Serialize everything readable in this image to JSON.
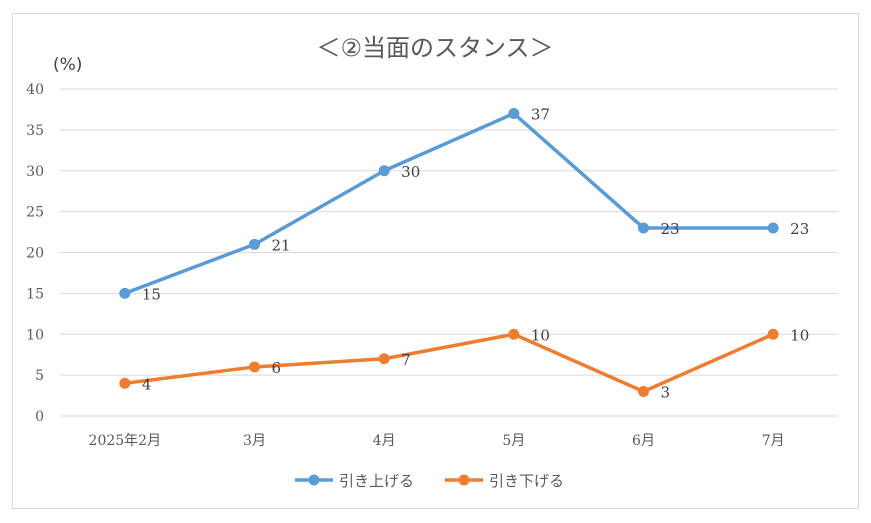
{
  "chart_data": {
    "type": "line",
    "title": "＜②当面のスタンス＞",
    "ylabel": "(%)",
    "xlabel": "",
    "categories": [
      "2025年2月",
      "3月",
      "4月",
      "5月",
      "6月",
      "7月"
    ],
    "ylim": [
      0,
      40
    ],
    "yticks": [
      0,
      5,
      10,
      15,
      20,
      25,
      30,
      35,
      40
    ],
    "grid": true,
    "legend_position": "bottom",
    "series": [
      {
        "name": "引き上げる",
        "color": "#5b9bd5",
        "values": [
          15,
          21,
          30,
          37,
          23,
          23
        ]
      },
      {
        "name": "引き下げる",
        "color": "#ed7d31",
        "values": [
          4,
          6,
          7,
          10,
          3,
          10
        ]
      }
    ]
  }
}
